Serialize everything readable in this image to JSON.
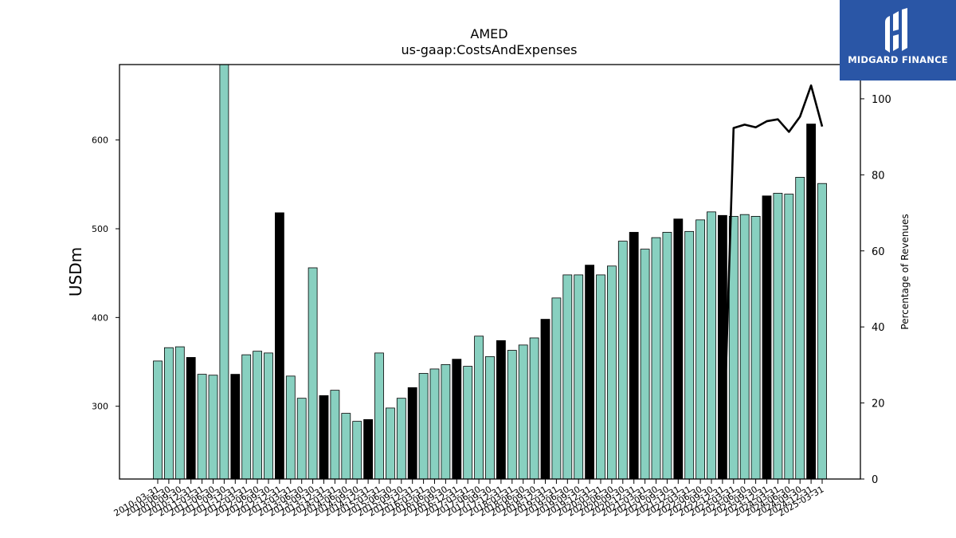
{
  "logo": {
    "text": "MIDGARD FINANCE",
    "icon": "midgard-logo-icon"
  },
  "chart_data": {
    "type": "bar",
    "title": "AMED",
    "subtitle": "us-gaap:CostsAndExpenses",
    "xlabel": "",
    "ylabel": "USDm",
    "y2label": "Percentage of Revenues",
    "ylim": [
      218,
      685
    ],
    "y2lim": [
      0,
      109
    ],
    "yticks": [
      300,
      400,
      500,
      600
    ],
    "y2ticks": [
      0,
      20,
      40,
      60,
      80,
      100
    ],
    "colors": {
      "quarter": "#88d0c0",
      "annual": "#000000",
      "line": "#000000",
      "edge": "#000000"
    },
    "categories": [
      "2010-03-31",
      "2010-06-30",
      "2010-09-30",
      "2010-12-31",
      "2011-03-31",
      "2011-06-30",
      "2011-09-30",
      "2011-12-31",
      "2012-03-31",
      "2012-06-30",
      "2012-09-30",
      "2012-12-31",
      "2013-03-31",
      "2013-06-30",
      "2013-09-30",
      "2013-12-31",
      "2014-03-31",
      "2014-06-30",
      "2014-09-30",
      "2014-12-31",
      "2015-03-31",
      "2015-06-30",
      "2015-09-30",
      "2015-12-31",
      "2016-03-31",
      "2016-06-30",
      "2016-09-30",
      "2016-12-31",
      "2017-03-31",
      "2017-06-30",
      "2017-09-30",
      "2017-12-31",
      "2018-03-31",
      "2018-06-30",
      "2018-09-30",
      "2018-12-31",
      "2019-03-31",
      "2019-06-30",
      "2019-09-30",
      "2019-12-31",
      "2020-03-31",
      "2020-06-30",
      "2020-09-30",
      "2020-12-31",
      "2021-03-31",
      "2021-06-30",
      "2021-09-30",
      "2021-12-31",
      "2022-03-31",
      "2022-06-30",
      "2022-09-30",
      "2022-12-31",
      "2023-03-31",
      "2023-06-30",
      "2023-09-30",
      "2023-12-31",
      "2024-03-31",
      "2024-06-30",
      "2024-09-30",
      "2024-12-31",
      "2025-03-31"
    ],
    "values": [
      351,
      366,
      367,
      355,
      336,
      335,
      685,
      336,
      358,
      362,
      360,
      518,
      334,
      309,
      456,
      312,
      318,
      292,
      283,
      285,
      360,
      298,
      309,
      321,
      337,
      342,
      347,
      353,
      345,
      379,
      356,
      374,
      363,
      369,
      377,
      398,
      422,
      448,
      448,
      459,
      448,
      458,
      486,
      496,
      477,
      490,
      496,
      511,
      497,
      510,
      519,
      515,
      514,
      516,
      514,
      537,
      540,
      539,
      558,
      618,
      551
    ],
    "annual": [
      false,
      false,
      false,
      true,
      false,
      false,
      false,
      true,
      false,
      false,
      false,
      true,
      false,
      false,
      false,
      true,
      false,
      false,
      false,
      true,
      false,
      false,
      false,
      true,
      false,
      false,
      false,
      true,
      false,
      false,
      false,
      true,
      false,
      false,
      false,
      true,
      false,
      false,
      false,
      true,
      false,
      false,
      false,
      true,
      false,
      false,
      false,
      true,
      false,
      false,
      false,
      true,
      false,
      false,
      false,
      true,
      false,
      false,
      false,
      true,
      false
    ],
    "line_series": {
      "name": "Percentage of Revenues",
      "start_index": 51,
      "values": [
        0,
        92.3,
        93.2,
        92.5,
        94.1,
        94.6,
        91.3,
        95.3,
        103.5,
        92.7
      ]
    }
  }
}
